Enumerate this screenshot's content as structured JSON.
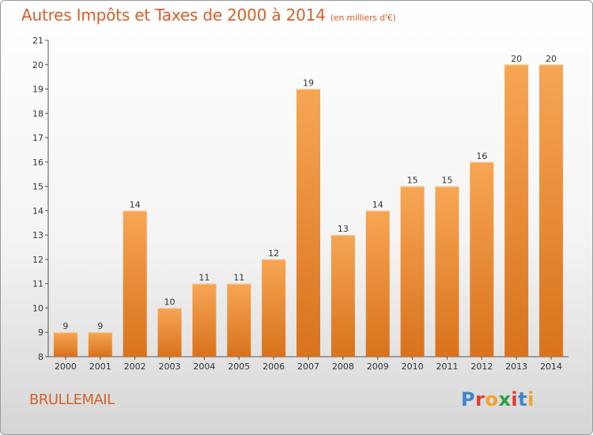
{
  "title": "Autres Impôts et Taxes de 2000 à 2014",
  "unit": "(en milliers d'€)",
  "place": "BRULLEMAIL",
  "logo": {
    "p": "P",
    "r": "r",
    "o": "o",
    "x": "x",
    "i": "i",
    "t": "t",
    "i2": "i"
  },
  "colors": {
    "bar_top": "#f7a654",
    "bar_bottom": "#d9721c",
    "accent": "#d4602a"
  },
  "chart_data": {
    "type": "bar",
    "categories": [
      "2000",
      "2001",
      "2002",
      "2003",
      "2004",
      "2005",
      "2006",
      "2007",
      "2008",
      "2009",
      "2010",
      "2011",
      "2012",
      "2013",
      "2014"
    ],
    "values": [
      9,
      9,
      14,
      10,
      11,
      11,
      12,
      19,
      13,
      14,
      15,
      15,
      16,
      20,
      20
    ],
    "title": "Autres Impôts et Taxes de 2000 à 2014",
    "ylim": [
      8,
      21
    ],
    "yticks": [
      8,
      9,
      10,
      11,
      12,
      13,
      14,
      15,
      16,
      17,
      18,
      19,
      20,
      21
    ],
    "grid": false
  }
}
